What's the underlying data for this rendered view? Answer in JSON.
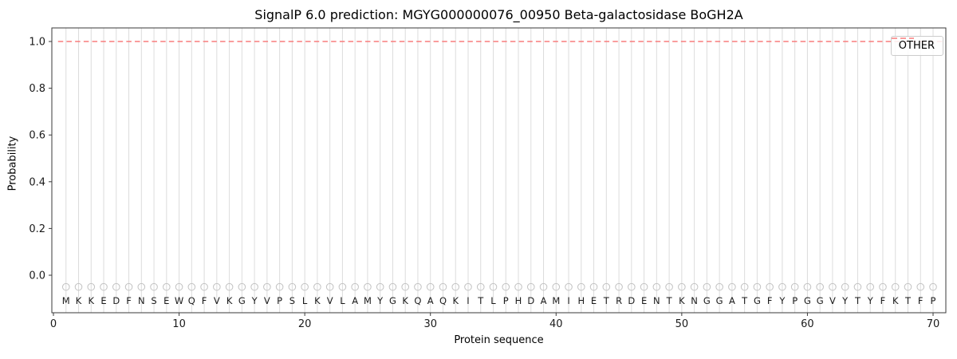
{
  "chart_data": {
    "type": "line",
    "title": "SignalP 6.0 prediction: MGYG000000076_00950 Beta-galactosidase BoGH2A",
    "xlabel": "Protein sequence",
    "ylabel": "Probability",
    "xticks": [
      0,
      10,
      20,
      30,
      40,
      50,
      60,
      70
    ],
    "yticks": [
      0.0,
      0.2,
      0.4,
      0.6,
      0.8,
      1.0
    ],
    "xlim": [
      -0.13,
      71.0
    ],
    "ylim": [
      -0.16,
      1.06
    ],
    "grid": "vertical gridline at every residue position 1-70",
    "sequence": "MKKEDFNSEWQFVKGYVPSLKVLAMYGKQAQKITLPHDAMIHETRDENTKNGGATGFYPGGVYTYFKTFP",
    "series": [
      {
        "name": "OTHER",
        "kind": "hline",
        "y": 1.0,
        "linestyle": "dashed",
        "color": "#f87d7d",
        "x_start": 1,
        "x_end": 70,
        "note": "constant OTHER probability of 1.0 across all 70 residues"
      }
    ],
    "markers": {
      "shape": "open-circle",
      "y": -0.05,
      "color": "#c3c3c3",
      "positions": "every residue 1-70"
    },
    "legend": {
      "position": "upper right",
      "entries": [
        {
          "label": "OTHER",
          "color": "#f87d7d",
          "linestyle": "dashed"
        }
      ]
    },
    "colors": {
      "grid": "#dcdcdc",
      "spine": "#3a3a3a",
      "text": "#1a1a1a",
      "series_other": "#f87d7d",
      "background": "#ffffff"
    }
  }
}
